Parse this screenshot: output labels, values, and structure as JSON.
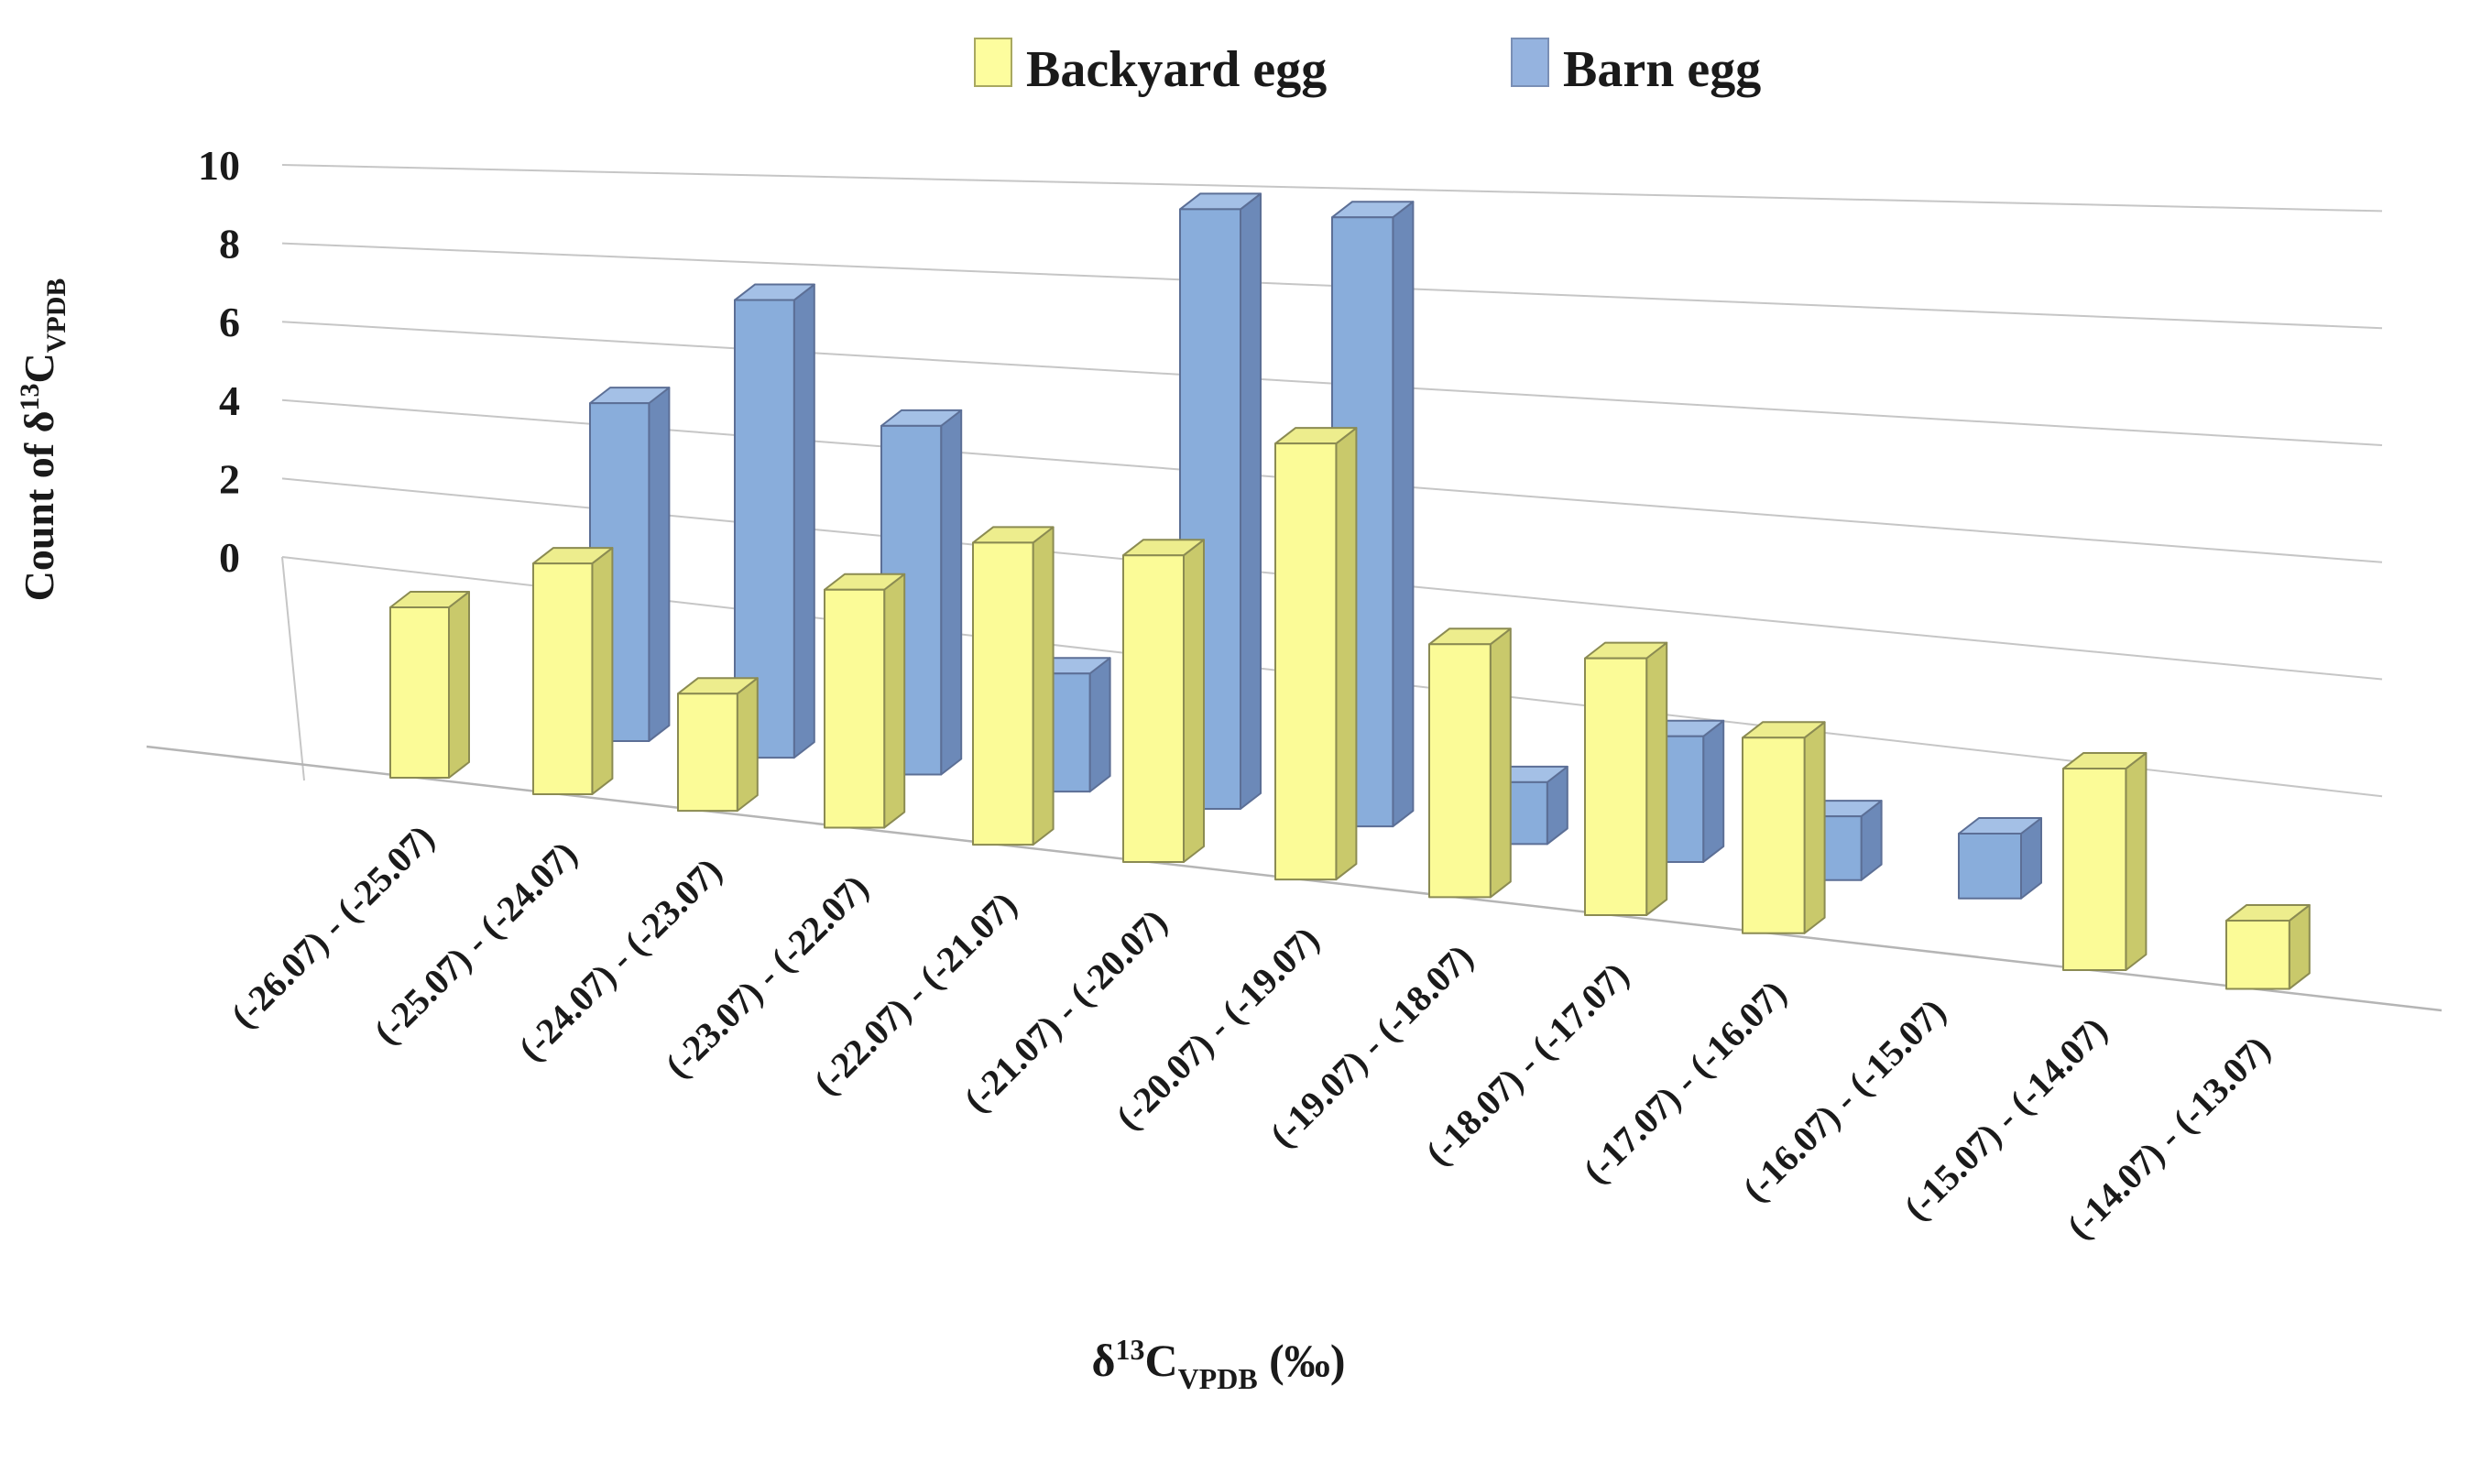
{
  "chart_data": {
    "type": "bar",
    "variant": "3d-clustered-column",
    "title": "",
    "categories": [
      "(-26.07) - (-25.07)",
      "(-25.07) - (-24.07)",
      "(-24.07) - (-23.07)",
      "(-23.07) - (-22.07)",
      "(-22.07) - (-21.07)",
      "(-21.07) - (-20.07)",
      "(-20.07) - (-19.07)",
      "(-19.07) - (-18.07)",
      "(-18.07) - (-17.07)",
      "(-17.07) - (-16.07)",
      "(-16.07) - (-15.07)",
      "(-15.07) - (-14.07)",
      "(-14.07) - (-13.07)"
    ],
    "series": [
      {
        "name": "Backyard egg",
        "values": [
          3,
          4,
          2,
          4,
          5,
          5,
          7,
          4,
          4,
          3,
          0,
          3,
          1
        ]
      },
      {
        "name": "Barn egg",
        "values": [
          0,
          6,
          8,
          6,
          2,
          10,
          10,
          1,
          2,
          1,
          1,
          0,
          0
        ]
      }
    ],
    "xlabel": "δ13CVPDB (‰)",
    "ylabel": "Count of δ13CVPDB",
    "ylim": [
      0,
      10
    ],
    "yticks": [
      "0",
      "2",
      "4",
      "6",
      "8",
      "10"
    ],
    "grid": true,
    "legend_position": "top-center"
  },
  "legend": {
    "items": [
      {
        "label": "Backyard egg",
        "swatch_color": "#FDFD9E",
        "swatch_border": "#A8A860"
      },
      {
        "label": "Barn egg",
        "swatch_color": "#95B3DF",
        "swatch_border": "#7A8FB5"
      }
    ]
  },
  "y_axis": {
    "label_parts": {
      "prefix": "Count of δ",
      "sup": "13",
      "mid": "C",
      "sub": "VPDB"
    },
    "ticks": [
      "0",
      "2",
      "4",
      "6",
      "8",
      "10"
    ]
  },
  "x_axis": {
    "title_parts": {
      "prefix": "δ",
      "sup": "13",
      "mid": "C",
      "sub": "VPDB",
      "suffix": " (‰)"
    }
  },
  "colors": {
    "backyard_front": "#FBFB97",
    "backyard_top": "#EDED8D",
    "backyard_side": "#C9C96B",
    "backyard_stroke": "#8B8B52",
    "barn_front": "#89ADDB",
    "barn_top": "#A4C0E6",
    "barn_side": "#6C89B8",
    "barn_stroke": "#5C6F96",
    "gridline": "#C6C6C6",
    "floor_edge": "#B5B5B5",
    "text": "#1a1a1a"
  }
}
